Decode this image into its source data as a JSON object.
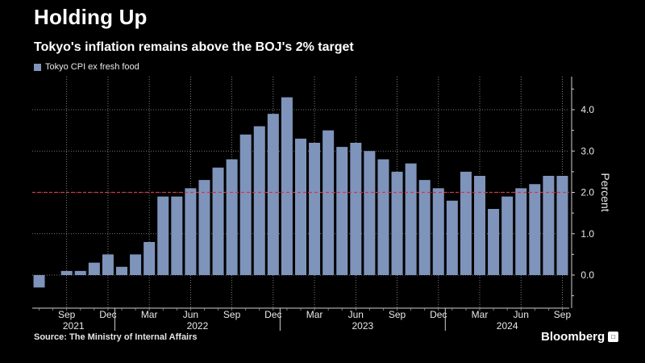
{
  "title": "Holding Up",
  "subtitle": "Tokyo's inflation remains above the BOJ's 2% target",
  "source": "Source: The Ministry of Internal Affairs",
  "brand": "Bloomberg",
  "brand_badge": "□",
  "colors": {
    "bar": "#7f94bb",
    "target": "#d93344",
    "grid": "#9a9a9a",
    "text": "#e8e8e8"
  },
  "chart_data": {
    "type": "bar",
    "legend": [
      "Tokyo CPI ex fresh food"
    ],
    "legend_placement": "top-left",
    "ylabel": "Percent",
    "ylim": [
      -0.8,
      4.8
    ],
    "yticks": [
      0.0,
      1.0,
      2.0,
      3.0,
      4.0
    ],
    "ytick_labels": [
      "0.0",
      "1.0",
      "2.0",
      "3.0",
      "4.0"
    ],
    "target_line": 2.0,
    "grid": true,
    "categories": [
      "2021-07",
      "2021-08",
      "2021-09",
      "2021-10",
      "2021-11",
      "2021-12",
      "2022-01",
      "2022-02",
      "2022-03",
      "2022-04",
      "2022-05",
      "2022-06",
      "2022-07",
      "2022-08",
      "2022-09",
      "2022-10",
      "2022-11",
      "2022-12",
      "2023-01",
      "2023-02",
      "2023-03",
      "2023-04",
      "2023-05",
      "2023-06",
      "2023-07",
      "2023-08",
      "2023-09",
      "2023-10",
      "2023-11",
      "2023-12",
      "2024-01",
      "2024-02",
      "2024-03",
      "2024-04",
      "2024-05",
      "2024-06",
      "2024-07",
      "2024-08",
      "2024-09"
    ],
    "values": [
      -0.3,
      0.0,
      0.1,
      0.1,
      0.3,
      0.5,
      0.2,
      0.5,
      0.8,
      1.9,
      1.9,
      2.1,
      2.3,
      2.6,
      2.8,
      3.4,
      3.6,
      3.9,
      4.3,
      3.3,
      3.2,
      3.5,
      3.1,
      3.2,
      3.0,
      2.8,
      2.5,
      2.7,
      2.3,
      2.1,
      1.8,
      2.5,
      2.4,
      1.6,
      1.9,
      2.1,
      2.2,
      2.4,
      2.4
    ],
    "month_ticks": [
      {
        "category": "2021-09",
        "label": "Sep"
      },
      {
        "category": "2021-12",
        "label": "Dec"
      },
      {
        "category": "2022-03",
        "label": "Mar"
      },
      {
        "category": "2022-06",
        "label": "Jun"
      },
      {
        "category": "2022-09",
        "label": "Sep"
      },
      {
        "category": "2022-12",
        "label": "Dec"
      },
      {
        "category": "2023-03",
        "label": "Mar"
      },
      {
        "category": "2023-06",
        "label": "Jun"
      },
      {
        "category": "2023-09",
        "label": "Sep"
      },
      {
        "category": "2023-12",
        "label": "Dec"
      },
      {
        "category": "2024-03",
        "label": "Mar"
      },
      {
        "category": "2024-06",
        "label": "Jun"
      },
      {
        "category": "2024-09",
        "label": "Sep"
      }
    ],
    "year_labels": [
      {
        "label": "2021",
        "from": "2021-07",
        "to": "2021-12"
      },
      {
        "label": "2022",
        "from": "2022-01",
        "to": "2022-12"
      },
      {
        "label": "2023",
        "from": "2023-01",
        "to": "2023-12"
      },
      {
        "label": "2024",
        "from": "2024-01",
        "to": "2024-09"
      }
    ],
    "year_dividers": [
      "2022-01",
      "2023-01",
      "2024-01"
    ]
  }
}
